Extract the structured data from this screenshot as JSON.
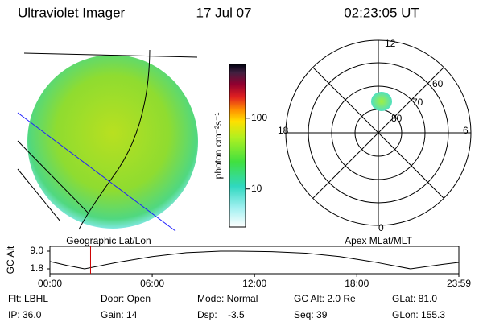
{
  "header": {
    "title": "Ultraviolet Imager",
    "date": "17 Jul 07",
    "time": "02:23:05 UT"
  },
  "left_panel": {
    "caption": "Geographic Lat/Lon"
  },
  "colorbar": {
    "label": "photon cm⁻²s⁻¹",
    "scale": "log",
    "lim": [
      2.9,
      575
    ],
    "ticks": [
      10,
      100
    ]
  },
  "polar": {
    "caption": "Apex MLat/MLT",
    "mlt_labels": [
      "12",
      "6",
      "0",
      "18"
    ],
    "lat_labels": [
      "60",
      "70",
      "80"
    ]
  },
  "chart_data": {
    "type": "line",
    "ylabel": "GC Alt",
    "x": [
      0,
      60,
      122,
      240,
      360,
      480,
      600,
      660,
      780,
      900,
      1020,
      1140,
      1269,
      1380,
      1439
    ],
    "values": [
      4.8,
      3.2,
      1.8,
      4.5,
      6.8,
      8.4,
      9.0,
      9.0,
      8.8,
      8.2,
      6.8,
      4.6,
      1.8,
      3.6,
      4.4
    ],
    "color": "#000000",
    "marker_x": 143,
    "marker_color": "#cc0000",
    "xlim": [
      0,
      1439
    ],
    "xticks": [
      {
        "value": 0,
        "label": "00:00"
      },
      {
        "value": 360,
        "label": "06:00"
      },
      {
        "value": 720,
        "label": "12:00"
      },
      {
        "value": 1080,
        "label": "18:00"
      },
      {
        "value": 1439,
        "label": "23:59"
      }
    ],
    "ylim": [
      1.8,
      9.0
    ],
    "yticks": [
      {
        "value": 1.8,
        "label": "1.8"
      },
      {
        "value": 9.0,
        "label": "9.0"
      }
    ]
  },
  "status": {
    "rows": [
      [
        "Flt: LBHL",
        "Door: Open",
        "Mode: Normal",
        "GC Alt: 2.0 Re",
        "GLat: 81.0"
      ],
      [
        "IP: 36.0",
        "Gain: 14",
        "Dsp:    -3.5",
        "Seq: 39",
        "GLon: 155.3"
      ]
    ]
  }
}
